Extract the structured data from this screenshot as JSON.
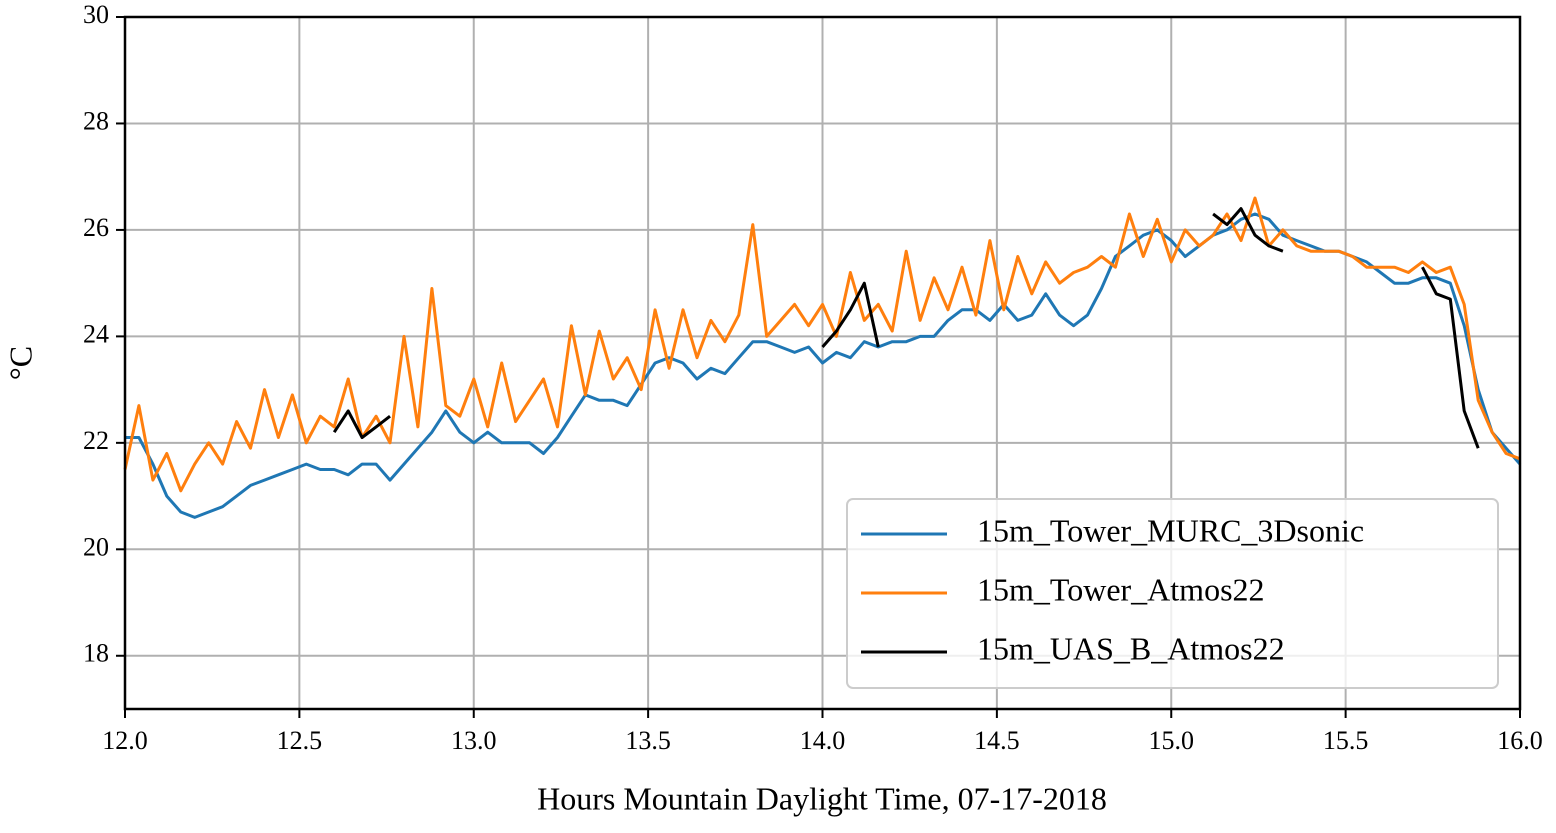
{
  "chart_data": {
    "type": "line",
    "xlabel": "Hours Mountain Daylight Time, 07-17-2018",
    "ylabel": "°C",
    "xlim": [
      12,
      16
    ],
    "ylim": [
      17,
      30
    ],
    "xticks": [
      {
        "value": 12,
        "label": "12.0"
      },
      12.5,
      {
        "value": 13,
        "label": "13.0"
      },
      13.5,
      {
        "value": 14,
        "label": "14.0"
      },
      14.5,
      {
        "value": 15,
        "label": "15.0"
      },
      15.5,
      {
        "value": 16,
        "label": "16.0"
      }
    ],
    "yticks": [
      18,
      20,
      22,
      24,
      26,
      28,
      30
    ],
    "grid": true,
    "legend": "lower right",
    "x": [
      12.0,
      12.04,
      12.08,
      12.12,
      12.16,
      12.2,
      12.24,
      12.28,
      12.32,
      12.36,
      12.4,
      12.44,
      12.48,
      12.52,
      12.56,
      12.6,
      12.64,
      12.68,
      12.72,
      12.76,
      12.8,
      12.84,
      12.88,
      12.92,
      12.96,
      13.0,
      13.04,
      13.08,
      13.12,
      13.16,
      13.2,
      13.24,
      13.28,
      13.32,
      13.36,
      13.4,
      13.44,
      13.48,
      13.52,
      13.56,
      13.6,
      13.64,
      13.68,
      13.72,
      13.76,
      13.8,
      13.84,
      13.88,
      13.92,
      13.96,
      14.0,
      14.04,
      14.08,
      14.12,
      14.16,
      14.2,
      14.24,
      14.28,
      14.32,
      14.36,
      14.4,
      14.44,
      14.48,
      14.52,
      14.56,
      14.6,
      14.64,
      14.68,
      14.72,
      14.76,
      14.8,
      14.84,
      14.88,
      14.92,
      14.96,
      15.0,
      15.04,
      15.08,
      15.12,
      15.16,
      15.2,
      15.24,
      15.28,
      15.32,
      15.36,
      15.4,
      15.44,
      15.48,
      15.52,
      15.56,
      15.6,
      15.64,
      15.68,
      15.72,
      15.76,
      15.8,
      15.84,
      15.88,
      15.92,
      15.96,
      16.0
    ],
    "series": [
      {
        "name": "15m_Tower_MURC_3Dsonic",
        "color": "#1f77b4",
        "values": [
          22.1,
          22.1,
          21.6,
          21.0,
          20.7,
          20.6,
          20.7,
          20.8,
          21.0,
          21.2,
          21.3,
          21.4,
          21.5,
          21.6,
          21.5,
          21.5,
          21.4,
          21.6,
          21.6,
          21.3,
          21.6,
          21.9,
          22.2,
          22.6,
          22.2,
          22.0,
          22.2,
          22.0,
          22.0,
          22.0,
          21.8,
          22.1,
          22.5,
          22.9,
          22.8,
          22.8,
          22.7,
          23.1,
          23.5,
          23.6,
          23.5,
          23.2,
          23.4,
          23.3,
          23.6,
          23.9,
          23.9,
          23.8,
          23.7,
          23.8,
          23.5,
          23.7,
          23.6,
          23.9,
          23.8,
          23.9,
          23.9,
          24.0,
          24.0,
          24.3,
          24.5,
          24.5,
          24.3,
          24.6,
          24.3,
          24.4,
          24.8,
          24.4,
          24.2,
          24.4,
          24.9,
          25.5,
          25.7,
          25.9,
          26.0,
          25.8,
          25.5,
          25.7,
          25.9,
          26.0,
          26.2,
          26.3,
          26.2,
          25.9,
          25.8,
          25.7,
          25.6,
          25.6,
          25.5,
          25.4,
          25.2,
          25.0,
          25.0,
          25.1,
          25.1,
          25.0,
          24.2,
          23.0,
          22.2,
          21.9,
          21.6
        ]
      },
      {
        "name": "15m_Tower_Atmos22",
        "color": "#ff7f0e",
        "values": [
          21.5,
          22.7,
          21.3,
          21.8,
          21.1,
          21.6,
          22.0,
          21.6,
          22.4,
          21.9,
          23.0,
          22.1,
          22.9,
          22.0,
          22.5,
          22.3,
          23.2,
          22.1,
          22.5,
          22.0,
          24.0,
          22.3,
          24.9,
          22.7,
          22.5,
          23.2,
          22.3,
          23.5,
          22.4,
          22.8,
          23.2,
          22.3,
          24.2,
          22.9,
          24.1,
          23.2,
          23.6,
          23.0,
          24.5,
          23.4,
          24.5,
          23.6,
          24.3,
          23.9,
          24.4,
          26.1,
          24.0,
          24.3,
          24.6,
          24.2,
          24.6,
          24.0,
          25.2,
          24.3,
          24.6,
          24.1,
          25.6,
          24.3,
          25.1,
          24.5,
          25.3,
          24.4,
          25.8,
          24.5,
          25.5,
          24.8,
          25.4,
          25.0,
          25.2,
          25.3,
          25.5,
          25.3,
          26.3,
          25.5,
          26.2,
          25.4,
          26.0,
          25.7,
          25.9,
          26.3,
          25.8,
          26.6,
          25.7,
          26.0,
          25.7,
          25.6,
          25.6,
          25.6,
          25.5,
          25.3,
          25.3,
          25.3,
          25.2,
          25.4,
          25.2,
          25.3,
          24.6,
          22.8,
          22.2,
          21.8,
          21.7
        ]
      },
      {
        "name": "15m_UAS_B_Atmos22",
        "color": "#000000",
        "values": [
          null,
          null,
          null,
          null,
          null,
          null,
          null,
          null,
          null,
          null,
          null,
          null,
          null,
          null,
          null,
          22.2,
          22.6,
          22.1,
          22.3,
          22.5,
          null,
          null,
          null,
          null,
          null,
          null,
          null,
          null,
          null,
          null,
          null,
          null,
          null,
          null,
          null,
          null,
          null,
          null,
          null,
          null,
          null,
          null,
          null,
          null,
          null,
          null,
          null,
          null,
          null,
          null,
          23.8,
          24.1,
          24.5,
          25.0,
          23.8,
          null,
          null,
          null,
          null,
          null,
          null,
          null,
          null,
          null,
          null,
          null,
          null,
          null,
          null,
          null,
          null,
          null,
          null,
          null,
          null,
          null,
          null,
          null,
          26.3,
          26.1,
          26.4,
          25.9,
          25.7,
          25.6,
          null,
          null,
          null,
          null,
          null,
          null,
          null,
          null,
          null,
          25.3,
          24.8,
          24.7,
          22.6,
          21.9,
          null,
          null,
          null
        ]
      }
    ]
  }
}
